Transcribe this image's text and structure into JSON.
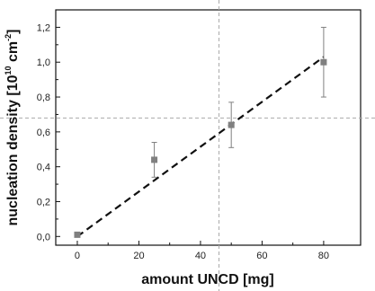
{
  "chart_data": {
    "type": "scatter",
    "xlabel": "amount UNCD [mg]",
    "ylabel_main": "nucleation density [10",
    "ylabel_sup1": "10",
    "ylabel_mid": " cm",
    "ylabel_sup2": "-2",
    "ylabel_end": "]",
    "xlim": [
      -7,
      92
    ],
    "ylim": [
      -0.05,
      1.3
    ],
    "xticks": [
      0,
      20,
      40,
      60,
      80
    ],
    "xtick_labels": [
      "0",
      "20",
      "40",
      "60",
      "80"
    ],
    "yticks": [
      0.0,
      0.2,
      0.4,
      0.6,
      0.8,
      1.0,
      1.2
    ],
    "ytick_labels": [
      "0,0",
      "0,2",
      "0,4",
      "0,6",
      "0,8",
      "1,0",
      "1,2"
    ],
    "series": [
      {
        "points": [
          {
            "x": 0,
            "y": 0.01,
            "err": 0
          },
          {
            "x": 25,
            "y": 0.44,
            "err": 0.1
          },
          {
            "x": 50,
            "y": 0.64,
            "err": 0.13
          },
          {
            "x": 80,
            "y": 1.0,
            "err": 0.2
          }
        ]
      }
    ],
    "fit_line": {
      "x": [
        0,
        80
      ],
      "y": [
        0.0,
        1.03
      ]
    },
    "reference_lines": {
      "vertical_x": 46,
      "horizontal_y": 0.68
    },
    "colors": {
      "marker": "#808080",
      "errorbar": "#808080",
      "fit": "#111111",
      "reference": "#aaaaaa"
    }
  }
}
